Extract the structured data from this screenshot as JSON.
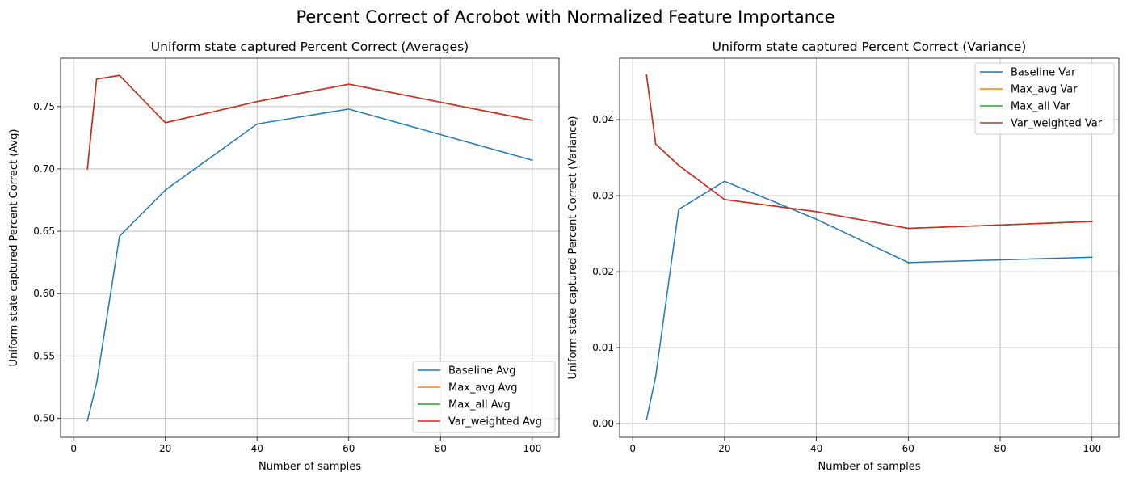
{
  "figure_title": "Percent Correct of Acrobot with Normalized Feature Importance",
  "chart_data": [
    {
      "type": "line",
      "title": "Uniform state captured Percent Correct (Averages)",
      "xlabel": "Number of samples",
      "ylabel": "Uniform state captured Percent Correct (Avg)",
      "xlim": [
        -2.85,
        105.85
      ],
      "ylim": [
        0.4847,
        0.7888
      ],
      "xticks": [
        0,
        20,
        40,
        60,
        80,
        100
      ],
      "xtick_labels": [
        "0",
        "20",
        "40",
        "60",
        "80",
        "100"
      ],
      "yticks": [
        0.5,
        0.55,
        0.6,
        0.65,
        0.7,
        0.75
      ],
      "ytick_labels": [
        "0.50",
        "0.55",
        "0.60",
        "0.65",
        "0.70",
        "0.75"
      ],
      "grid": true,
      "legend_position": "lower-right",
      "x": [
        3,
        5,
        10,
        20,
        40,
        60,
        100
      ],
      "series": [
        {
          "name": "Baseline Avg",
          "color": "#1f77b4",
          "values": [
            0.498,
            0.528,
            0.646,
            0.683,
            0.736,
            0.748,
            0.707
          ]
        },
        {
          "name": "Max_avg Avg",
          "color": "#ff7f0e",
          "values": [
            0.7,
            0.772,
            0.775,
            0.737,
            0.754,
            0.768,
            0.739
          ]
        },
        {
          "name": "Max_all Avg",
          "color": "#2ca02c",
          "values": [
            0.7,
            0.772,
            0.775,
            0.737,
            0.754,
            0.768,
            0.739
          ]
        },
        {
          "name": "Var_weighted Avg",
          "color": "#d62728",
          "values": [
            0.7,
            0.772,
            0.775,
            0.737,
            0.754,
            0.768,
            0.739
          ]
        }
      ]
    },
    {
      "type": "line",
      "title": "Uniform state captured Percent Correct (Variance)",
      "xlabel": "Number of samples",
      "ylabel": "Uniform state captured Percent Correct (Variance)",
      "xlim": [
        -2.85,
        105.85
      ],
      "ylim": [
        -0.0018,
        0.0481
      ],
      "xticks": [
        0,
        20,
        40,
        60,
        80,
        100
      ],
      "xtick_labels": [
        "0",
        "20",
        "40",
        "60",
        "80",
        "100"
      ],
      "yticks": [
        0.0,
        0.01,
        0.02,
        0.03,
        0.04
      ],
      "ytick_labels": [
        "0.00",
        "0.01",
        "0.02",
        "0.03",
        "0.04"
      ],
      "grid": true,
      "legend_position": "upper-right",
      "x": [
        3,
        5,
        10,
        20,
        40,
        60,
        100
      ],
      "series": [
        {
          "name": "Baseline Var",
          "color": "#1f77b4",
          "values": [
            0.0005,
            0.0062,
            0.0282,
            0.0319,
            0.0269,
            0.0212,
            0.0219
          ]
        },
        {
          "name": "Max_avg Var",
          "color": "#ff7f0e",
          "values": [
            0.0459,
            0.0368,
            0.034,
            0.0295,
            0.0279,
            0.0257,
            0.0266
          ]
        },
        {
          "name": "Max_all Var",
          "color": "#2ca02c",
          "values": [
            0.0459,
            0.0368,
            0.034,
            0.0295,
            0.0279,
            0.0257,
            0.0266
          ]
        },
        {
          "name": "Var_weighted Var",
          "color": "#d62728",
          "values": [
            0.0459,
            0.0368,
            0.034,
            0.0295,
            0.0279,
            0.0257,
            0.0266
          ]
        }
      ]
    }
  ]
}
